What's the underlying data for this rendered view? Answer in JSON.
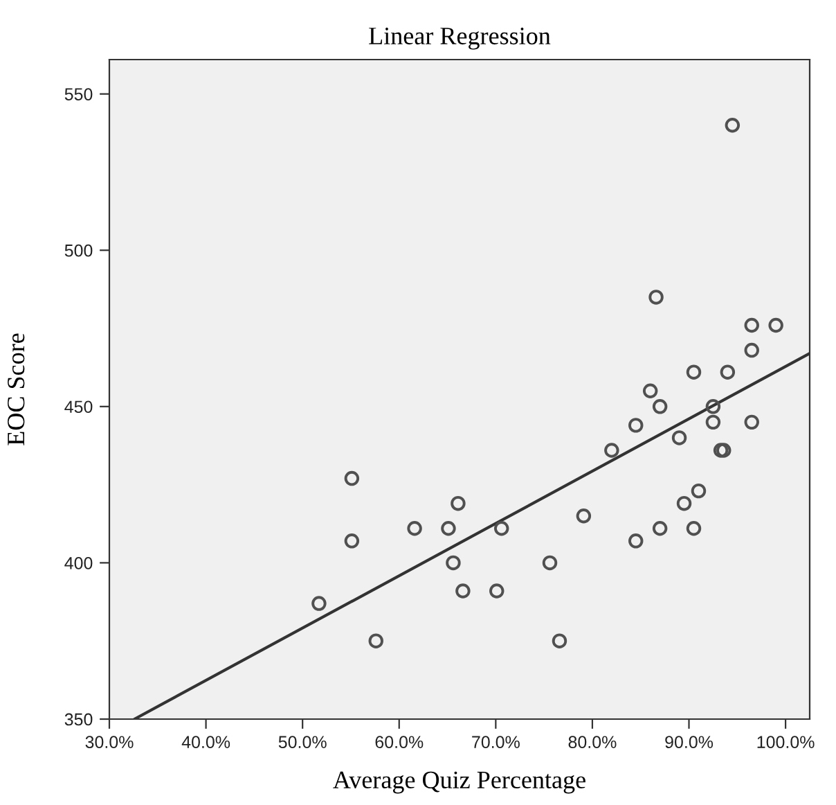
{
  "chart_data": {
    "type": "scatter",
    "title": "Linear Regression",
    "xlabel": "Average Quiz Percentage",
    "ylabel": "EOC Score",
    "xlim": [
      30,
      102.5
    ],
    "ylim": [
      350,
      561
    ],
    "xticks": [
      {
        "value": 30,
        "label": "30.0%"
      },
      {
        "value": 40,
        "label": "40.0%"
      },
      {
        "value": 50,
        "label": "50.0%"
      },
      {
        "value": 60,
        "label": "60.0%"
      },
      {
        "value": 70,
        "label": "70.0%"
      },
      {
        "value": 80,
        "label": "80.0%"
      },
      {
        "value": 90,
        "label": "90.0%"
      },
      {
        "value": 100,
        "label": "100.0%"
      }
    ],
    "yticks": [
      350,
      400,
      450,
      500,
      550
    ],
    "grid": false,
    "series": [
      {
        "marker": "circle",
        "color": "#505050",
        "x": [
          51.7,
          55.1,
          55.1,
          57.6,
          61.6,
          65.1,
          66.1,
          65.6,
          66.6,
          70.1,
          70.6,
          75.6,
          76.6,
          79.1,
          82.0,
          84.5,
          84.5,
          87.0,
          89.0,
          89.5,
          90.5,
          91.0,
          93.3,
          93.6,
          92.5,
          96.5,
          94.5,
          86.6,
          96.5,
          99.0,
          96.5,
          90.5,
          94.0,
          86.0,
          87.0,
          92.5
        ],
        "values": [
          387,
          427,
          407,
          375,
          411,
          411,
          419,
          400,
          391,
          391,
          411,
          400,
          375,
          415,
          436,
          444,
          407,
          411,
          440,
          419,
          411,
          423,
          436,
          436,
          445,
          445,
          540,
          485,
          476,
          476,
          468,
          461,
          461,
          455,
          450,
          450
        ]
      },
      {
        "type": "line",
        "marker": "none",
        "color": "#333333",
        "x": [
          32.6,
          102.5
        ],
        "values": [
          350,
          467
        ]
      }
    ]
  }
}
